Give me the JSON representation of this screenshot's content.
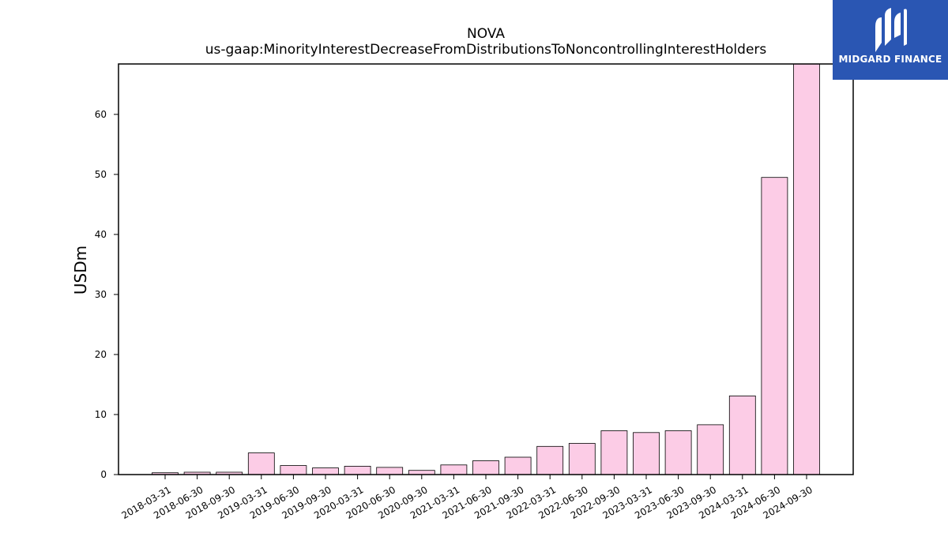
{
  "chart_data": {
    "type": "bar",
    "title": "NOVA",
    "subtitle": "us-gaap:MinorityInterestDecreaseFromDistributionsToNoncontrollingInterestHolders",
    "xlabel": "",
    "ylabel": "USDm",
    "ylim": [
      0,
      68.4
    ],
    "yticks": [
      0,
      10,
      20,
      30,
      40,
      50,
      60
    ],
    "grid": false,
    "categories": [
      "2018-03-31",
      "2018-06-30",
      "2018-09-30",
      "2019-03-31",
      "2019-06-30",
      "2019-09-30",
      "2020-03-31",
      "2020-06-30",
      "2020-09-30",
      "2021-03-31",
      "2021-06-30",
      "2021-09-30",
      "2022-03-31",
      "2022-06-30",
      "2022-09-30",
      "2023-03-31",
      "2023-06-30",
      "2023-09-30",
      "2024-03-31",
      "2024-06-30",
      "2024-09-30"
    ],
    "values": [
      0.3,
      0.4,
      0.4,
      3.6,
      1.5,
      1.1,
      1.4,
      1.2,
      0.7,
      1.6,
      2.3,
      2.9,
      4.7,
      5.2,
      7.3,
      7.0,
      7.3,
      8.3,
      13.1,
      49.5,
      68.4
    ],
    "bar_color": "#fccce6",
    "edge_color": "#000000"
  },
  "logo": {
    "text": "MIDGARD FINANCE",
    "bg_color": "#2a56b3"
  }
}
